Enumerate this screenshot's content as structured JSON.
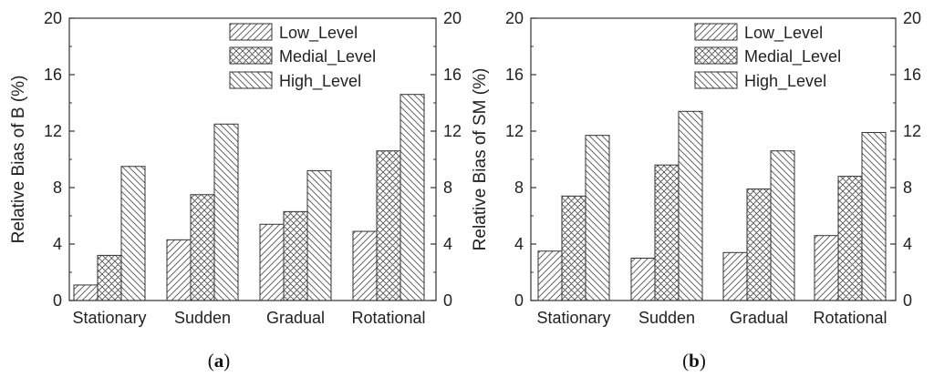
{
  "chart_data": [
    {
      "type": "bar",
      "panel": "a",
      "caption": {
        "open": "(",
        "letter": "a",
        "close": ")"
      },
      "categories": [
        "Stationary",
        "Sudden",
        "Gradual",
        "Rotational"
      ],
      "series": [
        {
          "name": "Low_Level",
          "values": [
            1.1,
            4.3,
            5.4,
            4.9
          ]
        },
        {
          "name": "Medial_Level",
          "values": [
            3.2,
            7.5,
            6.3,
            10.6
          ]
        },
        {
          "name": "High_Level",
          "values": [
            9.5,
            12.5,
            9.2,
            14.6
          ]
        }
      ],
      "ylabel": "Relative Bias of B (%)",
      "ylim": [
        0,
        20
      ],
      "yticks": [
        "0",
        "4",
        "8",
        "12",
        "16",
        "20"
      ],
      "right_axis": true,
      "legend_position": "top-right",
      "grid": false
    },
    {
      "type": "bar",
      "panel": "b",
      "caption": {
        "open": "(",
        "letter": "b",
        "close": ")"
      },
      "categories": [
        "Stationary",
        "Sudden",
        "Gradual",
        "Rotational"
      ],
      "series": [
        {
          "name": "Low_Level",
          "values": [
            3.5,
            3.0,
            3.4,
            4.6
          ]
        },
        {
          "name": "Medial_Level",
          "values": [
            7.4,
            9.6,
            7.9,
            8.8
          ]
        },
        {
          "name": "High_Level",
          "values": [
            11.7,
            13.4,
            10.6,
            11.9
          ]
        }
      ],
      "ylabel": "Relative Bias of SM (%)",
      "ylim": [
        0,
        20
      ],
      "yticks": [
        "0",
        "4",
        "8",
        "12",
        "16",
        "20"
      ],
      "right_axis": true,
      "legend_position": "top-right",
      "grid": false
    }
  ]
}
